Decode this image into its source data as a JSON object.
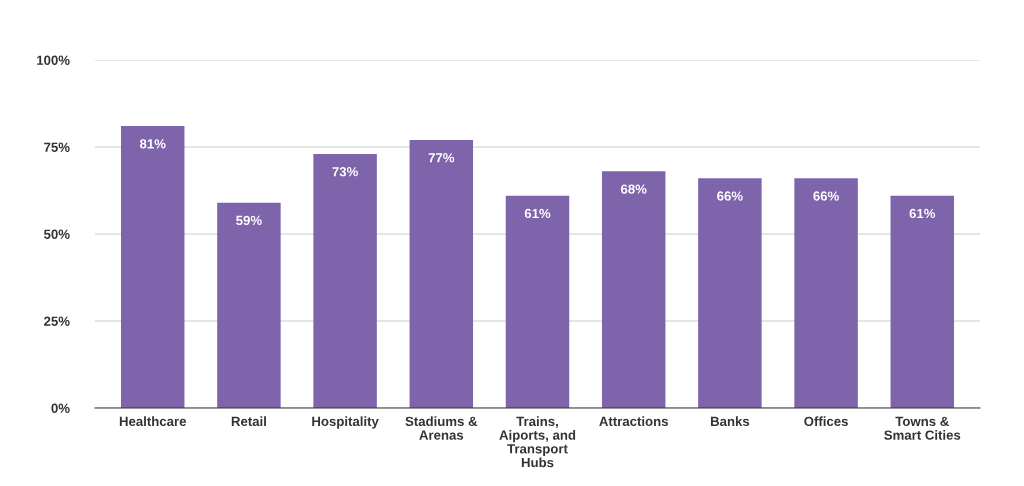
{
  "chart_data": {
    "type": "bar",
    "categories": [
      "Healthcare",
      "Retail",
      "Hospitality",
      "Stadiums &\nArenas",
      "Trains,\nAiports, and\nTransport\nHubs",
      "Attractions",
      "Banks",
      "Offices",
      "Towns &\nSmart Cities"
    ],
    "values": [
      81,
      59,
      73,
      77,
      61,
      68,
      66,
      66,
      61
    ],
    "value_labels": [
      "81%",
      "59%",
      "73%",
      "77%",
      "61%",
      "68%",
      "66%",
      "66%",
      "61%"
    ],
    "color": "#7e64aa",
    "ylim": [
      0,
      100
    ],
    "yticks": [
      {
        "value": 0,
        "label": "0%"
      },
      {
        "value": 25,
        "label": "25%"
      },
      {
        "value": 50,
        "label": "50%"
      },
      {
        "value": 75,
        "label": "75%"
      },
      {
        "value": 100,
        "label": "100%"
      }
    ],
    "grid": "y"
  }
}
